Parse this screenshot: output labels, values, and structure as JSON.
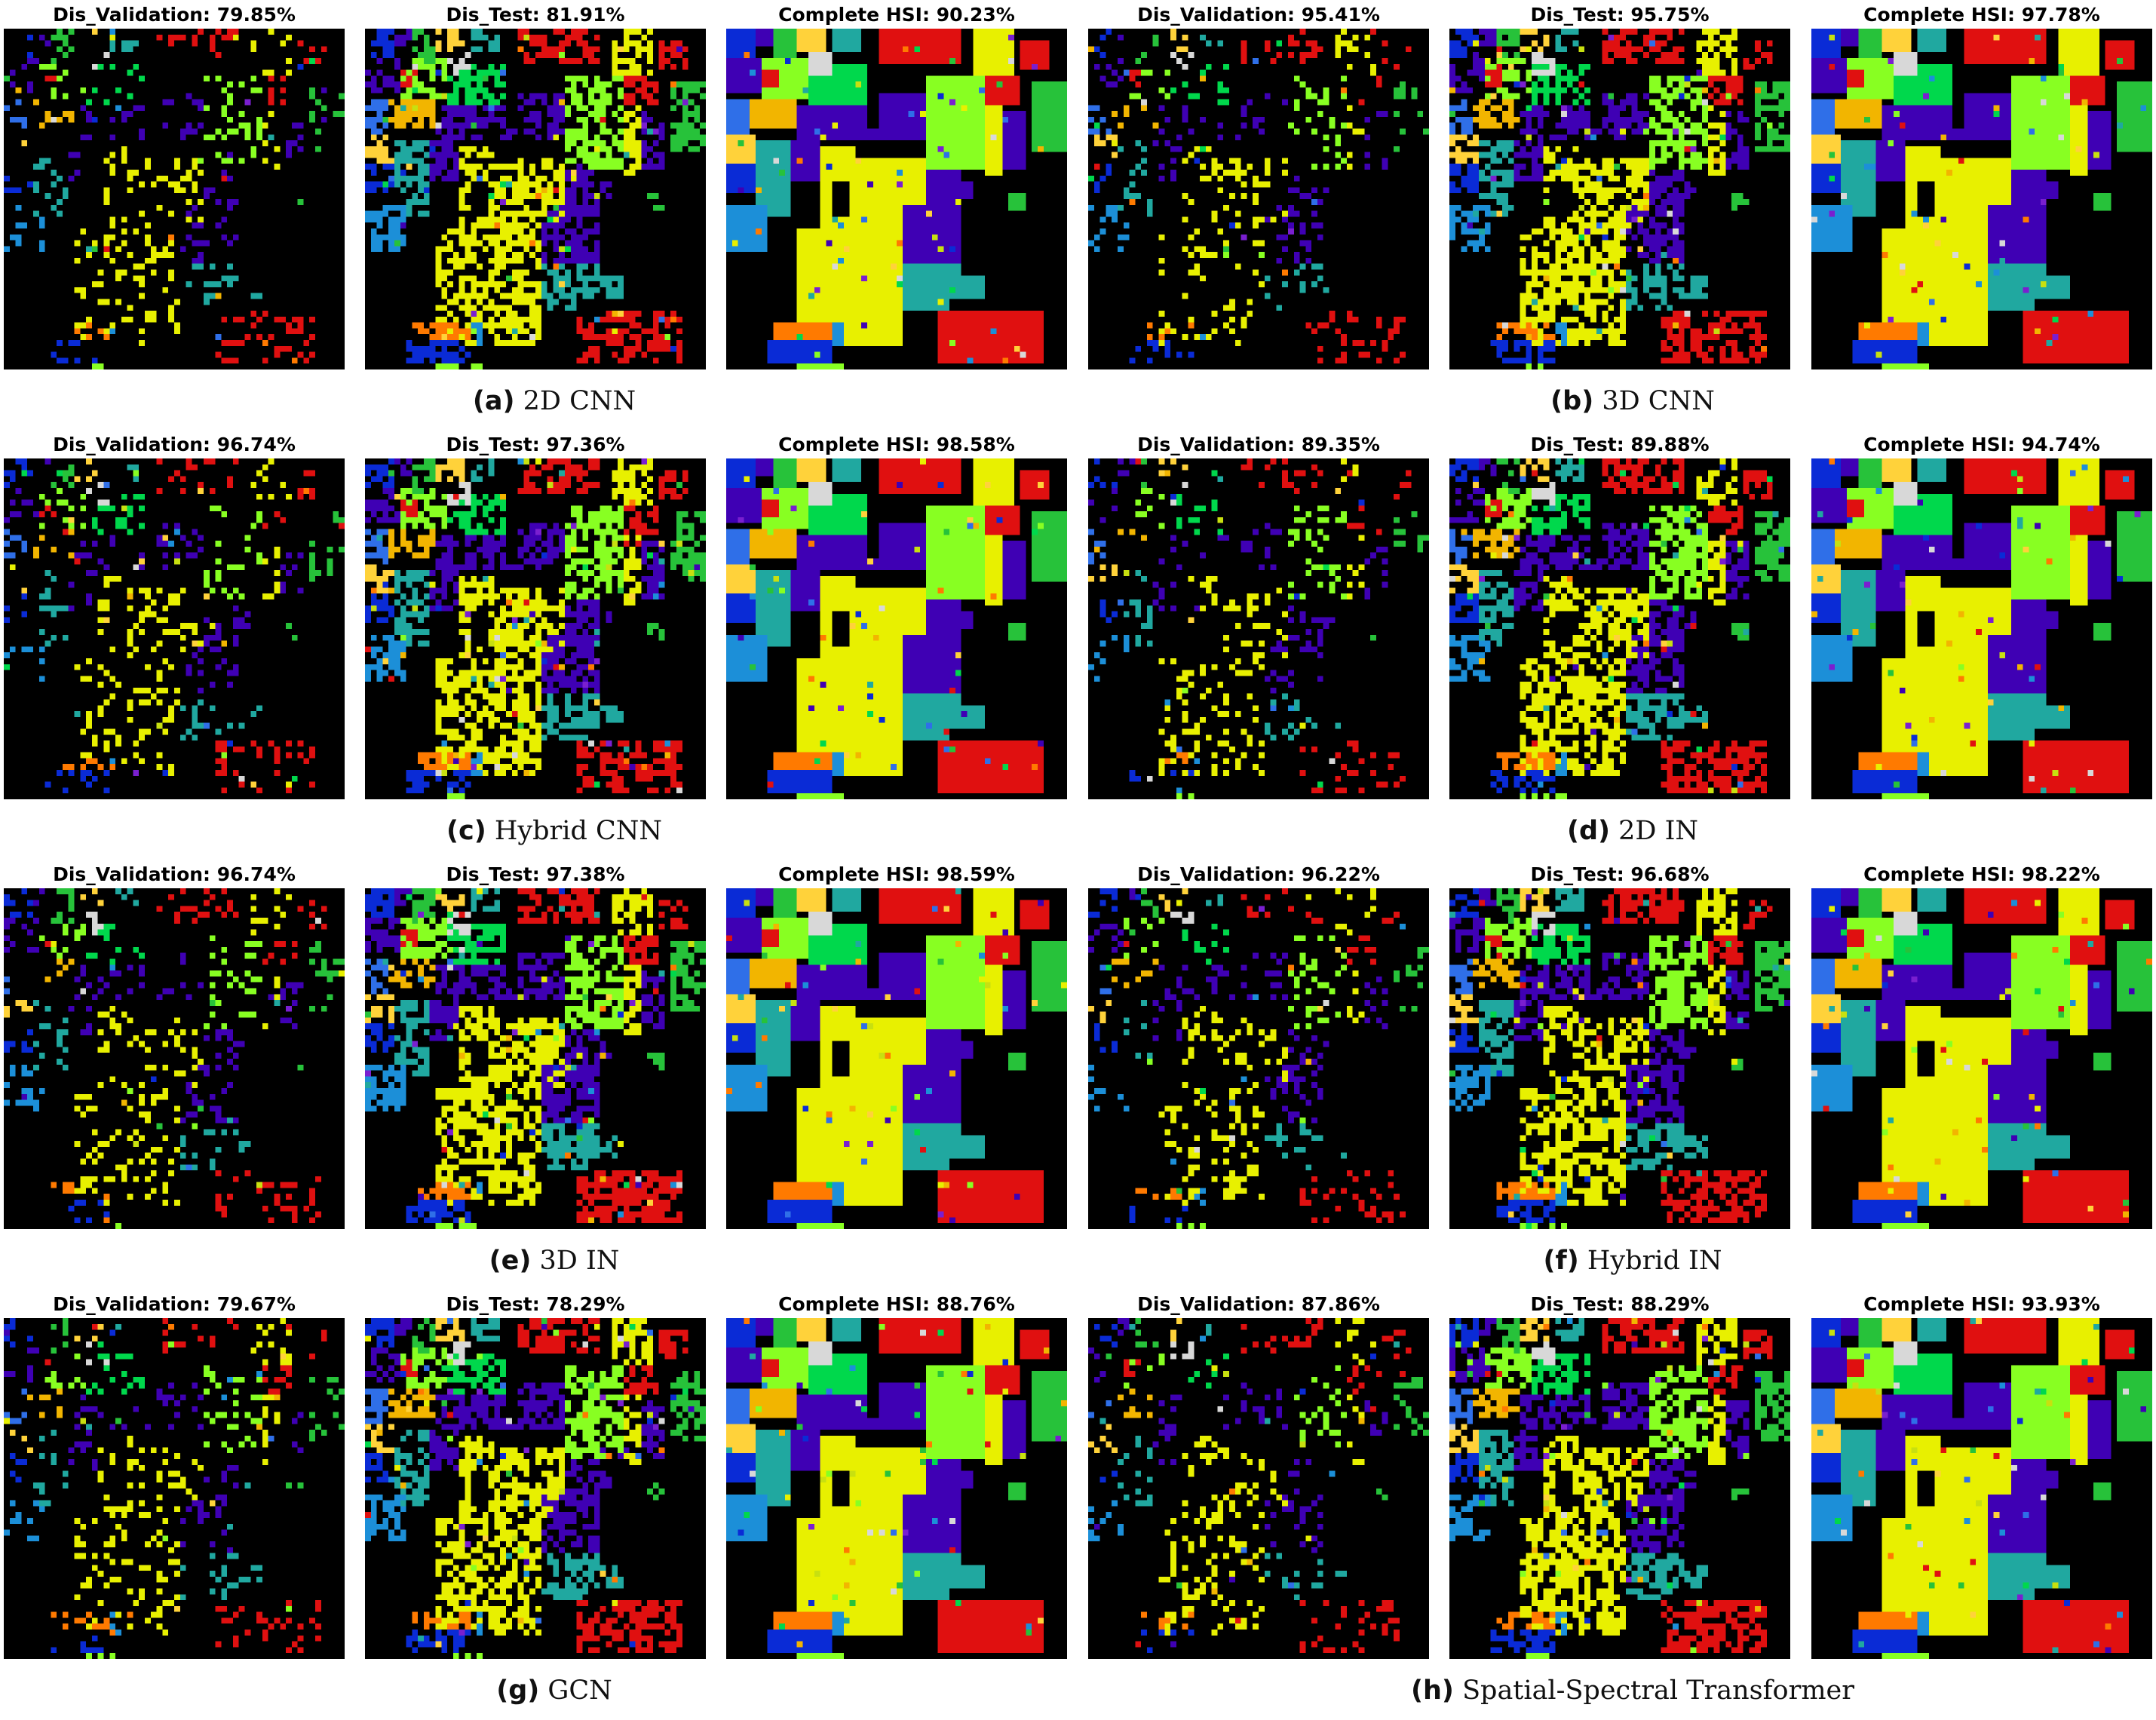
{
  "colors": {
    "background": "#ffffff",
    "map_background": "#000000",
    "classes": [
      "#0a2bd6",
      "#3f00b4",
      "#e01010",
      "#f2b500",
      "#e8f000",
      "#d8d8d8",
      "#27c23a",
      "#20a8a0",
      "#1c8fd8",
      "#ff7a00",
      "#88ff22",
      "#2f6fe8",
      "#00d84c",
      "#7a1fd0",
      "#c8e010",
      "#ffd23a"
    ]
  },
  "figures": [
    {
      "letter": "(a)",
      "method": "2D CNN",
      "panels": [
        {
          "title": "Dis_Validation: 79.85%",
          "kind": "sparse"
        },
        {
          "title": "Dis_Test: 81.91%",
          "kind": "dense"
        },
        {
          "title": "Complete HSI: 90.23%",
          "kind": "full"
        }
      ]
    },
    {
      "letter": "(b)",
      "method": "3D CNN",
      "panels": [
        {
          "title": "Dis_Validation: 95.41%",
          "kind": "sparse"
        },
        {
          "title": "Dis_Test: 95.75%",
          "kind": "dense"
        },
        {
          "title": "Complete HSI: 97.78%",
          "kind": "full"
        }
      ]
    },
    {
      "letter": "(c)",
      "method": "Hybrid CNN",
      "panels": [
        {
          "title": "Dis_Validation: 96.74%",
          "kind": "sparse"
        },
        {
          "title": "Dis_Test: 97.36%",
          "kind": "dense"
        },
        {
          "title": "Complete HSI: 98.58%",
          "kind": "full"
        }
      ]
    },
    {
      "letter": "(d)",
      "method": "2D IN",
      "panels": [
        {
          "title": "Dis_Validation: 89.35%",
          "kind": "sparse"
        },
        {
          "title": "Dis_Test: 89.88%",
          "kind": "dense"
        },
        {
          "title": "Complete HSI: 94.74%",
          "kind": "full"
        }
      ]
    },
    {
      "letter": "(e)",
      "method": "3D IN",
      "panels": [
        {
          "title": "Dis_Validation: 96.74%",
          "kind": "sparse"
        },
        {
          "title": "Dis_Test: 97.38%",
          "kind": "dense"
        },
        {
          "title": "Complete HSI: 98.59%",
          "kind": "full"
        }
      ]
    },
    {
      "letter": "(f)",
      "method": "Hybrid IN",
      "panels": [
        {
          "title": "Dis_Validation: 96.22%",
          "kind": "sparse"
        },
        {
          "title": "Dis_Test: 96.68%",
          "kind": "dense"
        },
        {
          "title": "Complete HSI: 98.22%",
          "kind": "full"
        }
      ]
    },
    {
      "letter": "(g)",
      "method": "GCN",
      "panels": [
        {
          "title": "Dis_Validation: 79.67%",
          "kind": "sparse"
        },
        {
          "title": "Dis_Test: 78.29%",
          "kind": "dense"
        },
        {
          "title": "Complete HSI: 88.76%",
          "kind": "full"
        }
      ]
    },
    {
      "letter": "(h)",
      "method": "Spatial-Spectral Transformer",
      "panels": [
        {
          "title": "Dis_Validation: 87.86%",
          "kind": "sparse"
        },
        {
          "title": "Dis_Test: 88.29%",
          "kind": "dense"
        },
        {
          "title": "Complete HSI: 93.93%",
          "kind": "full"
        }
      ]
    }
  ]
}
